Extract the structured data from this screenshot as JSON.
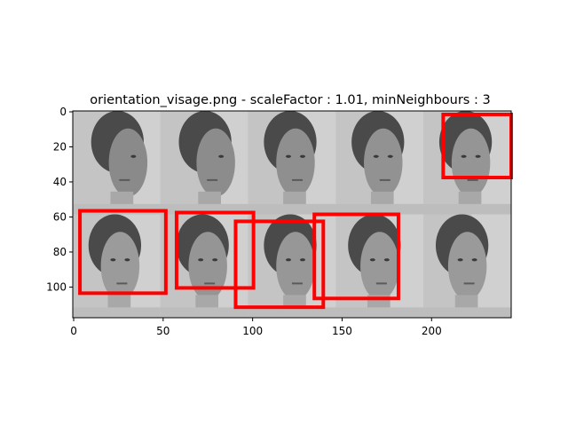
{
  "figure": {
    "title": "orientation_visage.png - scaleFactor : 1.01, minNeighbours : 3"
  },
  "image": {
    "description_role": "grayscale face montage, 5 columns x 2 rows",
    "width_units": 245,
    "height_units": 118,
    "faces": [
      {
        "row": 0,
        "col": 0,
        "pose": "profile-right",
        "shade": "#8a8a8a"
      },
      {
        "row": 0,
        "col": 1,
        "pose": "profile-right",
        "shade": "#8c8c8c"
      },
      {
        "row": 0,
        "col": 2,
        "pose": "three-quarter-right",
        "shade": "#8f8f8f"
      },
      {
        "row": 0,
        "col": 3,
        "pose": "three-quarter-right",
        "shade": "#929292"
      },
      {
        "row": 0,
        "col": 4,
        "pose": "frontal-slight-right",
        "shade": "#959595"
      },
      {
        "row": 1,
        "col": 0,
        "pose": "frontal-tilt-up",
        "shade": "#9b9b9b"
      },
      {
        "row": 1,
        "col": 1,
        "pose": "frontal",
        "shade": "#959595"
      },
      {
        "row": 1,
        "col": 2,
        "pose": "frontal",
        "shade": "#979797"
      },
      {
        "row": 1,
        "col": 3,
        "pose": "three-quarter-left",
        "shade": "#999999"
      },
      {
        "row": 1,
        "col": 4,
        "pose": "three-quarter-left",
        "shade": "#9a9a9a"
      }
    ]
  },
  "detections": {
    "color": "#ff0000",
    "boxes": [
      {
        "x0": 207,
        "y0": 2,
        "x1": 245,
        "y1": 38
      },
      {
        "x0": 4,
        "y0": 57,
        "x1": 52,
        "y1": 104
      },
      {
        "x0": 58,
        "y0": 58,
        "x1": 101,
        "y1": 101
      },
      {
        "x0": 91,
        "y0": 63,
        "x1": 140,
        "y1": 112
      },
      {
        "x0": 135,
        "y0": 59,
        "x1": 182,
        "y1": 107
      }
    ]
  },
  "axes": {
    "xticks": [
      0,
      50,
      100,
      150,
      200
    ],
    "yticks": [
      0,
      20,
      40,
      60,
      80,
      100
    ]
  }
}
